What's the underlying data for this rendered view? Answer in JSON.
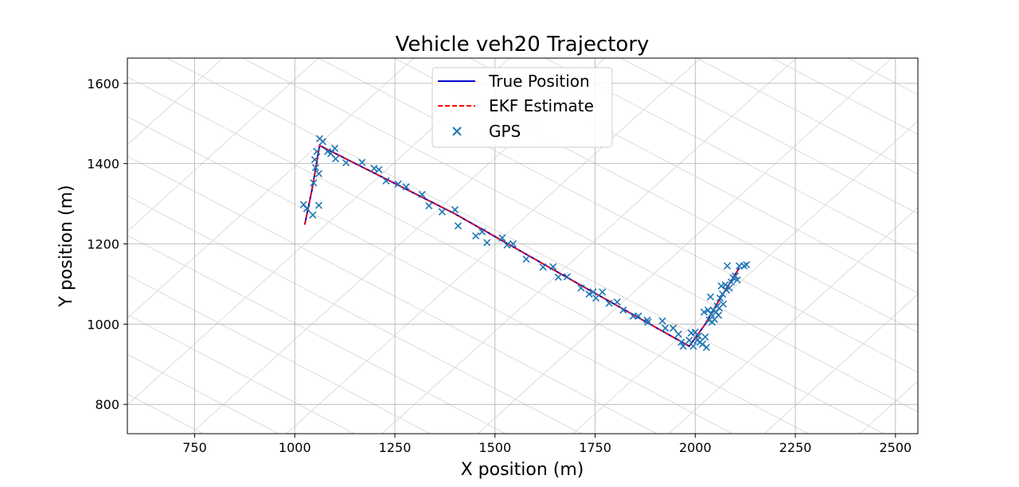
{
  "chart_data": {
    "type": "line",
    "title": "Vehicle veh20 Trajectory",
    "xlabel": "X position (m)",
    "ylabel": "Y position (m)",
    "xlim": [
      582,
      2556
    ],
    "ylim": [
      727,
      1663
    ],
    "xticks": [
      750,
      1000,
      1250,
      1500,
      1750,
      2000,
      2250,
      2500
    ],
    "yticks": [
      800,
      1000,
      1200,
      1400,
      1600
    ],
    "grid": true,
    "legend_position": "top-center",
    "colors": {
      "true_position": "#0000cc",
      "ekf_estimate": "#ff0000",
      "gps": "#1f77b4",
      "grid": "#b0b0b0",
      "background_map": "#dcdcdc"
    },
    "series": [
      {
        "name": "True Position",
        "style": "solid",
        "points": [
          [
            1025,
            1248
          ],
          [
            1043,
            1335
          ],
          [
            1062,
            1445
          ],
          [
            1400,
            1275
          ],
          [
            1700,
            1105
          ],
          [
            1985,
            945
          ],
          [
            2025,
            1000
          ],
          [
            2060,
            1060
          ],
          [
            2110,
            1140
          ]
        ]
      },
      {
        "name": "EKF Estimate",
        "style": "dashed",
        "points": [
          [
            1025,
            1248
          ],
          [
            1043,
            1335
          ],
          [
            1062,
            1445
          ],
          [
            1400,
            1275
          ],
          [
            1700,
            1105
          ],
          [
            1985,
            945
          ],
          [
            2025,
            1000
          ],
          [
            2060,
            1060
          ],
          [
            2110,
            1140
          ]
        ]
      },
      {
        "name": "GPS",
        "style": "marker-x",
        "points": [
          [
            1022,
            1298
          ],
          [
            1030,
            1288
          ],
          [
            1045,
            1272
          ],
          [
            1060,
            1296
          ],
          [
            1047,
            1352
          ],
          [
            1052,
            1390
          ],
          [
            1060,
            1375
          ],
          [
            1050,
            1410
          ],
          [
            1055,
            1430
          ],
          [
            1062,
            1462
          ],
          [
            1070,
            1455
          ],
          [
            1082,
            1430
          ],
          [
            1090,
            1425
          ],
          [
            1100,
            1438
          ],
          [
            1102,
            1412
          ],
          [
            1128,
            1402
          ],
          [
            1168,
            1403
          ],
          [
            1198,
            1388
          ],
          [
            1210,
            1385
          ],
          [
            1228,
            1357
          ],
          [
            1258,
            1349
          ],
          [
            1278,
            1342
          ],
          [
            1318,
            1323
          ],
          [
            1335,
            1295
          ],
          [
            1368,
            1280
          ],
          [
            1400,
            1285
          ],
          [
            1408,
            1245
          ],
          [
            1452,
            1220
          ],
          [
            1468,
            1230
          ],
          [
            1480,
            1203
          ],
          [
            1518,
            1215
          ],
          [
            1530,
            1197
          ],
          [
            1545,
            1200
          ],
          [
            1578,
            1162
          ],
          [
            1620,
            1142
          ],
          [
            1645,
            1143
          ],
          [
            1658,
            1117
          ],
          [
            1680,
            1118
          ],
          [
            1715,
            1090
          ],
          [
            1735,
            1075
          ],
          [
            1745,
            1080
          ],
          [
            1752,
            1065
          ],
          [
            1768,
            1080
          ],
          [
            1785,
            1052
          ],
          [
            1805,
            1055
          ],
          [
            1820,
            1035
          ],
          [
            1845,
            1020
          ],
          [
            1858,
            1020
          ],
          [
            1880,
            1010
          ],
          [
            1882,
            1005
          ],
          [
            1918,
            1008
          ],
          [
            1925,
            990
          ],
          [
            1945,
            990
          ],
          [
            1958,
            975
          ],
          [
            1965,
            955
          ],
          [
            1970,
            945
          ],
          [
            1985,
            960
          ],
          [
            1990,
            978
          ],
          [
            1995,
            945
          ],
          [
            2000,
            980
          ],
          [
            2005,
            960
          ],
          [
            2008,
            970
          ],
          [
            2012,
            955
          ],
          [
            2018,
            950
          ],
          [
            2022,
            1030
          ],
          [
            2025,
            968
          ],
          [
            2028,
            942
          ],
          [
            2032,
            1035
          ],
          [
            2035,
            1010
          ],
          [
            2038,
            1068
          ],
          [
            2040,
            1025
          ],
          [
            2042,
            1005
          ],
          [
            2045,
            1035
          ],
          [
            2048,
            1012
          ],
          [
            2052,
            1030
          ],
          [
            2055,
            1045
          ],
          [
            2058,
            1022
          ],
          [
            2060,
            1040
          ],
          [
            2062,
            1065
          ],
          [
            2065,
            1095
          ],
          [
            2068,
            1075
          ],
          [
            2070,
            1050
          ],
          [
            2075,
            1098
          ],
          [
            2078,
            1085
          ],
          [
            2080,
            1145
          ],
          [
            2085,
            1090
          ],
          [
            2090,
            1105
          ],
          [
            2095,
            1115
          ],
          [
            2100,
            1120
          ],
          [
            2105,
            1110
          ],
          [
            2110,
            1145
          ],
          [
            2122,
            1145
          ],
          [
            2128,
            1148
          ]
        ]
      }
    ]
  }
}
